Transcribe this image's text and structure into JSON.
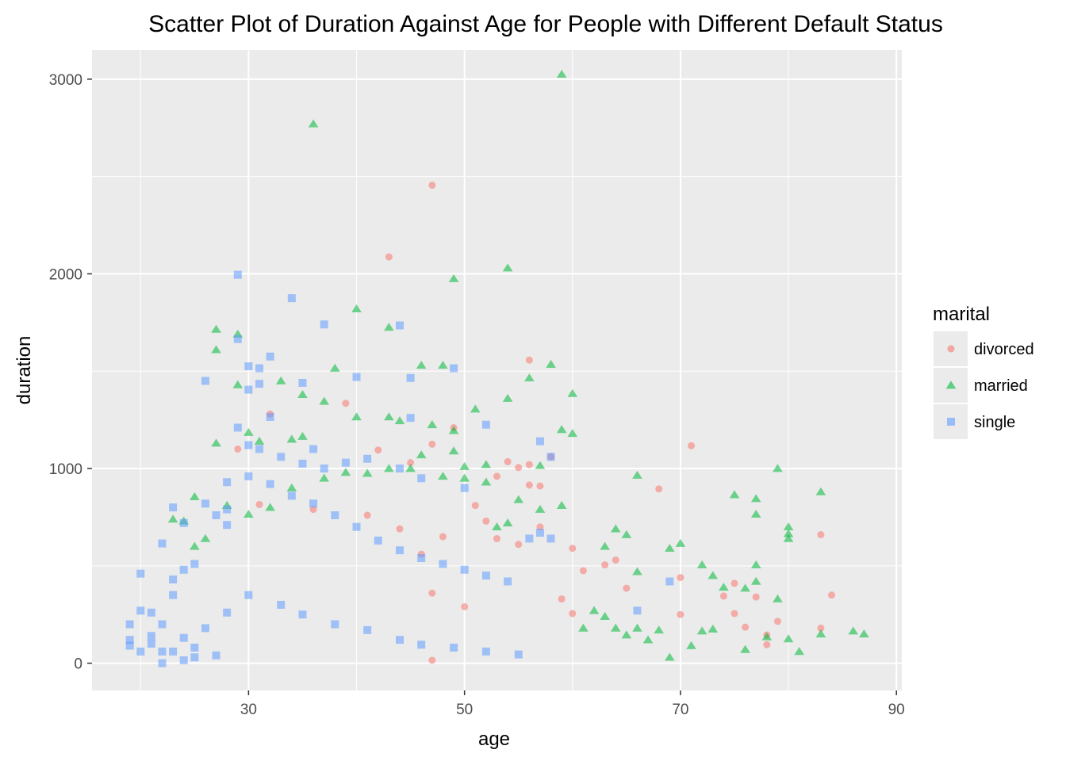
{
  "chart_data": {
    "type": "scatter",
    "title": "Scatter Plot of Duration Against Age for People with Different Default Status",
    "xlabel": "age",
    "ylabel": "duration",
    "xlim": [
      15.5,
      90.5
    ],
    "ylim": [
      -140,
      3150
    ],
    "x_ticks": [
      30,
      50,
      70,
      90
    ],
    "y_ticks": [
      0,
      1000,
      2000,
      3000
    ],
    "grid": true,
    "legend": {
      "title": "marital",
      "position": "right"
    },
    "colors": {
      "divorced": "#F8766D",
      "married": "#00BA38",
      "single": "#619CFF",
      "panel": "#EBEBEB",
      "grid": "#FFFFFF"
    },
    "series": [
      {
        "name": "divorced",
        "shape": "circle",
        "points": [
          [
            47,
            2455
          ],
          [
            43,
            2087
          ],
          [
            39,
            1335
          ],
          [
            49,
            1210
          ],
          [
            56,
            1557
          ],
          [
            71,
            1117
          ],
          [
            68,
            895
          ],
          [
            54,
            1035
          ],
          [
            55,
            1005
          ],
          [
            56,
            1020
          ],
          [
            53,
            960
          ],
          [
            45,
            1030
          ],
          [
            47,
            1125
          ],
          [
            58,
            1060
          ],
          [
            31,
            815
          ],
          [
            32,
            1280
          ],
          [
            29,
            1100
          ],
          [
            36,
            790
          ],
          [
            42,
            1095
          ],
          [
            52,
            730
          ],
          [
            55,
            610
          ],
          [
            57,
            700
          ],
          [
            60,
            590
          ],
          [
            61,
            475
          ],
          [
            63,
            505
          ],
          [
            64,
            530
          ],
          [
            65,
            385
          ],
          [
            70,
            440
          ],
          [
            70,
            250
          ],
          [
            74,
            345
          ],
          [
            75,
            410
          ],
          [
            75,
            255
          ],
          [
            76,
            185
          ],
          [
            77,
            340
          ],
          [
            78,
            145
          ],
          [
            79,
            215
          ],
          [
            83,
            660
          ],
          [
            83,
            180
          ],
          [
            84,
            350
          ],
          [
            78,
            95
          ],
          [
            46,
            560
          ],
          [
            47,
            15
          ],
          [
            50,
            290
          ],
          [
            53,
            640
          ],
          [
            56,
            915
          ],
          [
            57,
            910
          ],
          [
            59,
            330
          ],
          [
            60,
            255
          ],
          [
            48,
            650
          ],
          [
            44,
            690
          ],
          [
            41,
            760
          ],
          [
            51,
            810
          ],
          [
            47,
            360
          ]
        ]
      },
      {
        "name": "married",
        "shape": "triangle",
        "points": [
          [
            59,
            3025
          ],
          [
            36,
            2770
          ],
          [
            54,
            2030
          ],
          [
            49,
            1975
          ],
          [
            40,
            1820
          ],
          [
            27,
            1715
          ],
          [
            29,
            1690
          ],
          [
            43,
            1725
          ],
          [
            27,
            1610
          ],
          [
            46,
            1530
          ],
          [
            48,
            1530
          ],
          [
            58,
            1535
          ],
          [
            56,
            1465
          ],
          [
            60,
            1385
          ],
          [
            54,
            1360
          ],
          [
            51,
            1305
          ],
          [
            38,
            1515
          ],
          [
            33,
            1450
          ],
          [
            29,
            1430
          ],
          [
            35,
            1380
          ],
          [
            37,
            1345
          ],
          [
            40,
            1265
          ],
          [
            43,
            1265
          ],
          [
            44,
            1245
          ],
          [
            47,
            1225
          ],
          [
            49,
            1195
          ],
          [
            30,
            1185
          ],
          [
            31,
            1140
          ],
          [
            27,
            1130
          ],
          [
            59,
            1200
          ],
          [
            60,
            1180
          ],
          [
            35,
            1165
          ],
          [
            34,
            1150
          ],
          [
            46,
            1070
          ],
          [
            49,
            1090
          ],
          [
            50,
            1010
          ],
          [
            52,
            1020
          ],
          [
            57,
            1015
          ],
          [
            66,
            965
          ],
          [
            75,
            865
          ],
          [
            77,
            845
          ],
          [
            77,
            765
          ],
          [
            79,
            1000
          ],
          [
            83,
            880
          ],
          [
            80,
            700
          ],
          [
            80,
            665
          ],
          [
            80,
            640
          ],
          [
            70,
            615
          ],
          [
            69,
            590
          ],
          [
            64,
            690
          ],
          [
            65,
            660
          ],
          [
            63,
            600
          ],
          [
            66,
            470
          ],
          [
            72,
            505
          ],
          [
            73,
            450
          ],
          [
            74,
            390
          ],
          [
            76,
            385
          ],
          [
            77,
            505
          ],
          [
            77,
            420
          ],
          [
            78,
            135
          ],
          [
            79,
            330
          ],
          [
            80,
            125
          ],
          [
            81,
            60
          ],
          [
            86,
            165
          ],
          [
            87,
            150
          ],
          [
            83,
            150
          ],
          [
            76,
            70
          ],
          [
            69,
            30
          ],
          [
            72,
            165
          ],
          [
            73,
            175
          ],
          [
            71,
            90
          ],
          [
            68,
            170
          ],
          [
            67,
            120
          ],
          [
            66,
            180
          ],
          [
            65,
            145
          ],
          [
            64,
            180
          ],
          [
            63,
            240
          ],
          [
            62,
            270
          ],
          [
            61,
            180
          ],
          [
            25,
            855
          ],
          [
            24,
            730
          ],
          [
            23,
            740
          ],
          [
            25,
            600
          ],
          [
            26,
            640
          ],
          [
            28,
            810
          ],
          [
            30,
            765
          ],
          [
            32,
            800
          ],
          [
            34,
            900
          ],
          [
            37,
            950
          ],
          [
            39,
            980
          ],
          [
            41,
            975
          ],
          [
            43,
            1000
          ],
          [
            45,
            1000
          ],
          [
            48,
            960
          ],
          [
            50,
            950
          ],
          [
            52,
            930
          ],
          [
            55,
            840
          ],
          [
            59,
            810
          ],
          [
            57,
            790
          ],
          [
            54,
            720
          ],
          [
            53,
            700
          ]
        ]
      },
      {
        "name": "single",
        "shape": "square",
        "points": [
          [
            29,
            1995
          ],
          [
            34,
            1875
          ],
          [
            37,
            1740
          ],
          [
            44,
            1735
          ],
          [
            29,
            1665
          ],
          [
            32,
            1575
          ],
          [
            30,
            1525
          ],
          [
            31,
            1515
          ],
          [
            30,
            1405
          ],
          [
            31,
            1435
          ],
          [
            26,
            1450
          ],
          [
            35,
            1440
          ],
          [
            40,
            1470
          ],
          [
            45,
            1465
          ],
          [
            49,
            1515
          ],
          [
            32,
            1265
          ],
          [
            45,
            1260
          ],
          [
            52,
            1225
          ],
          [
            29,
            1210
          ],
          [
            31,
            1100
          ],
          [
            30,
            1120
          ],
          [
            33,
            1060
          ],
          [
            35,
            1025
          ],
          [
            36,
            1100
          ],
          [
            37,
            1000
          ],
          [
            39,
            1030
          ],
          [
            41,
            1050
          ],
          [
            44,
            1000
          ],
          [
            46,
            950
          ],
          [
            50,
            900
          ],
          [
            57,
            1140
          ],
          [
            58,
            1060
          ],
          [
            22,
            615
          ],
          [
            23,
            800
          ],
          [
            24,
            720
          ],
          [
            20,
            460
          ],
          [
            19,
            200
          ],
          [
            19,
            120
          ],
          [
            20,
            270
          ],
          [
            21,
            260
          ],
          [
            21,
            100
          ],
          [
            22,
            200
          ],
          [
            22,
            60
          ],
          [
            22,
            0
          ],
          [
            23,
            350
          ],
          [
            23,
            430
          ],
          [
            24,
            480
          ],
          [
            25,
            510
          ],
          [
            26,
            820
          ],
          [
            27,
            760
          ],
          [
            28,
            790
          ],
          [
            28,
            710
          ],
          [
            28,
            930
          ],
          [
            30,
            960
          ],
          [
            32,
            920
          ],
          [
            34,
            860
          ],
          [
            36,
            820
          ],
          [
            38,
            760
          ],
          [
            40,
            700
          ],
          [
            42,
            630
          ],
          [
            44,
            580
          ],
          [
            46,
            540
          ],
          [
            48,
            510
          ],
          [
            50,
            480
          ],
          [
            52,
            450
          ],
          [
            54,
            420
          ],
          [
            56,
            640
          ],
          [
            57,
            670
          ],
          [
            58,
            640
          ],
          [
            66,
            270
          ],
          [
            69,
            420
          ],
          [
            24,
            130
          ],
          [
            25,
            80
          ],
          [
            26,
            180
          ],
          [
            27,
            40
          ],
          [
            25,
            30
          ],
          [
            24,
            15
          ],
          [
            23,
            60
          ],
          [
            21,
            140
          ],
          [
            20,
            60
          ],
          [
            19,
            90
          ],
          [
            28,
            260
          ],
          [
            30,
            350
          ],
          [
            33,
            300
          ],
          [
            35,
            250
          ],
          [
            38,
            200
          ],
          [
            41,
            170
          ],
          [
            44,
            120
          ],
          [
            46,
            95
          ],
          [
            49,
            80
          ],
          [
            52,
            60
          ],
          [
            55,
            45
          ]
        ]
      }
    ]
  }
}
